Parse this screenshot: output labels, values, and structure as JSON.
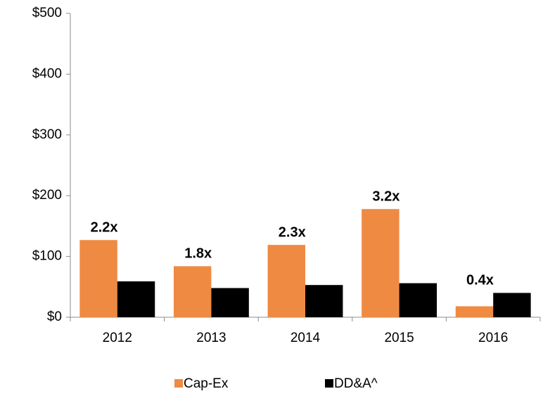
{
  "chart_data": {
    "type": "bar",
    "categories": [
      "2012",
      "2013",
      "2014",
      "2015",
      "2016"
    ],
    "series": [
      {
        "name": "Cap-Ex",
        "color": "#ef8a43",
        "values": [
          127,
          84,
          119,
          178,
          18
        ]
      },
      {
        "name": "DD&A^",
        "color": "#000000",
        "values": [
          59,
          48,
          53,
          56,
          40
        ]
      }
    ],
    "annotations": [
      "2.2x",
      "1.8x",
      "2.3x",
      "3.2x",
      "0.4x"
    ],
    "ylim": [
      0,
      500
    ],
    "yticks": [
      {
        "value": 0,
        "label": "$0"
      },
      {
        "value": 100,
        "label": "$100"
      },
      {
        "value": 200,
        "label": "$200"
      },
      {
        "value": 300,
        "label": "$300"
      },
      {
        "value": 400,
        "label": "$400"
      },
      {
        "value": 500,
        "label": "$500"
      }
    ],
    "grid": false,
    "legend": "bottom"
  }
}
